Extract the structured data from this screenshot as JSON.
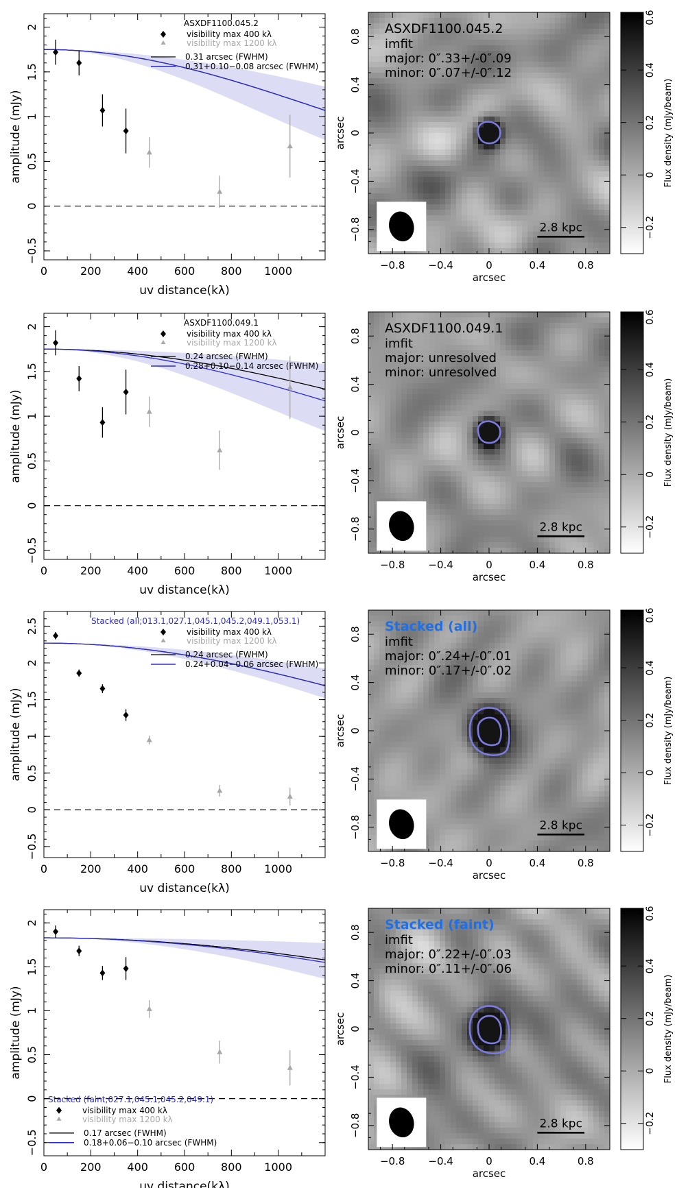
{
  "chart_data": [
    {
      "type": "scatter",
      "panel": "uv-amplitude",
      "title": "ASXDF1100.045.2",
      "xlabel": "uv distance(kλ)",
      "ylabel": "amplitude (mJy)",
      "xlim": [
        0,
        1200
      ],
      "ylim": [
        -0.6,
        2.15
      ],
      "xticks": [
        "0",
        "200",
        "400",
        "600",
        "800",
        "1000"
      ],
      "yticks": [
        "−0.5",
        "0",
        "0.5",
        "1",
        "1.5",
        "2"
      ],
      "legend": {
        "position": "top-right",
        "points_max": "visibility max  400 kλ",
        "points_grey": "visibility max 1200 kλ",
        "fit_black": "0.31 arcsec (FWHM)",
        "fit_blue": "0.31+0.10−0.08 arcsec (FWHM)"
      },
      "series": [
        {
          "name": "visibility max  400 kλ",
          "x": [
            50,
            150,
            250,
            350
          ],
          "y": [
            1.72,
            1.6,
            1.07,
            0.84
          ],
          "err": [
            0.14,
            0.14,
            0.18,
            0.25
          ]
        },
        {
          "name": "visibility max 1200 kλ",
          "x": [
            450,
            750,
            1050
          ],
          "y": [
            0.6,
            0.16,
            0.67
          ],
          "err": [
            0.17,
            0.18,
            0.35
          ]
        }
      ],
      "fits": {
        "amp0": 1.75,
        "fwhm_black": 0.31,
        "fwhm_blue": 0.31,
        "band_lo": 0.23,
        "band_hi": 0.41
      }
    },
    {
      "type": "heatmap",
      "panel": "image",
      "label": "ASXDF1100.045.2",
      "label_blue": false,
      "lines": [
        "imfit",
        "major: 0″.33+/-0″.09",
        "minor: 0″.07+/-0″.12"
      ],
      "xlabel": "arcsec",
      "ylabel": "arcsec",
      "xticks": [
        "−0.8",
        "−0.4",
        "0",
        "0.4",
        "0.8"
      ],
      "yticks": [
        "−0.8",
        "−0.4",
        "0",
        "0.4",
        "0.8"
      ],
      "scalebar": "2.8 kpc",
      "colorbar_label": "Flux density (mJy/beam)",
      "colorbar_ticks": [
        "−0.2",
        "0",
        "0.2",
        "0.4",
        "0.6"
      ],
      "contours": 1
    },
    {
      "type": "scatter",
      "panel": "uv-amplitude",
      "title": "ASXDF1100.049.1",
      "xlabel": "uv distance(kλ)",
      "ylabel": "amplitude (mJy)",
      "xlim": [
        0,
        1200
      ],
      "ylim": [
        -0.6,
        2.15
      ],
      "xticks": [
        "0",
        "200",
        "400",
        "600",
        "800",
        "1000"
      ],
      "yticks": [
        "−0.5",
        "0",
        "0.5",
        "1",
        "1.5",
        "2"
      ],
      "legend": {
        "position": "top-right",
        "points_max": "visibility max  400 kλ",
        "points_grey": "visibility max 1200 kλ",
        "fit_black": "0.24 arcsec (FWHM)",
        "fit_blue": "0.28+0.10−0.14 arcsec (FWHM)"
      },
      "series": [
        {
          "name": "visibility max  400 kλ",
          "x": [
            50,
            150,
            250,
            350
          ],
          "y": [
            1.82,
            1.42,
            0.93,
            1.27
          ],
          "err": [
            0.14,
            0.14,
            0.17,
            0.25
          ]
        },
        {
          "name": "visibility max 1200 kλ",
          "x": [
            450,
            750,
            1050
          ],
          "y": [
            1.05,
            0.62,
            1.32
          ],
          "err": [
            0.17,
            0.22,
            0.35
          ]
        }
      ],
      "fits": {
        "amp0": 1.75,
        "fwhm_black": 0.24,
        "fwhm_blue": 0.28,
        "band_lo": 0.14,
        "band_hi": 0.38
      }
    },
    {
      "type": "heatmap",
      "panel": "image",
      "label": "ASXDF1100.049.1",
      "label_blue": false,
      "lines": [
        "imfit",
        "major: unresolved",
        "minor: unresolved"
      ],
      "xlabel": "arcsec",
      "ylabel": "arcsec",
      "xticks": [
        "−0.8",
        "−0.4",
        "0",
        "0.4",
        "0.8"
      ],
      "yticks": [
        "−0.8",
        "−0.4",
        "0",
        "0.4",
        "0.8"
      ],
      "scalebar": "2.8 kpc",
      "colorbar_label": "Flux density (mJy/beam)",
      "colorbar_ticks": [
        "−0.2",
        "0",
        "0.2",
        "0.4",
        "0.6"
      ],
      "contours": 1
    },
    {
      "type": "scatter",
      "panel": "uv-amplitude",
      "title": "Stacked (all;013.1,027.1,045.1,045.2,049.1,053.1)",
      "title_blue": true,
      "xlabel": "uv distance(kλ)",
      "ylabel": "amplitude (mJy)",
      "xlim": [
        0,
        1200
      ],
      "ylim": [
        -0.65,
        2.7
      ],
      "xticks": [
        "0",
        "200",
        "400",
        "600",
        "800",
        "1000"
      ],
      "yticks": [
        "−0.5",
        "0",
        "0.5",
        "1",
        "1.5",
        "2",
        "2.5"
      ],
      "legend": {
        "position": "top-right",
        "points_max": "visibility max  400 kλ",
        "points_grey": "visibility max 1200 kλ",
        "fit_black": "0.24 arcsec (FWHM)",
        "fit_blue": "0.24+0.04−0.06 arcsec (FWHM)"
      },
      "series": [
        {
          "name": "visibility max  400 kλ",
          "x": [
            50,
            150,
            250,
            350
          ],
          "y": [
            2.37,
            1.86,
            1.65,
            1.29
          ],
          "err": [
            0.05,
            0.05,
            0.06,
            0.08
          ]
        },
        {
          "name": "visibility max 1200 kλ",
          "x": [
            450,
            750,
            1050
          ],
          "y": [
            0.95,
            0.26,
            0.18
          ],
          "err": [
            0.06,
            0.08,
            0.12
          ]
        }
      ],
      "fits": {
        "amp0": 2.27,
        "fwhm_black": 0.24,
        "fwhm_blue": 0.24,
        "band_lo": 0.18,
        "band_hi": 0.28
      }
    },
    {
      "type": "heatmap",
      "panel": "image",
      "label": "Stacked (all)",
      "label_blue": true,
      "lines": [
        "imfit",
        "major: 0″.24+/-0″.01",
        "minor: 0″.17+/-0″.02"
      ],
      "xlabel": "arcsec",
      "ylabel": "arcsec",
      "xticks": [
        "−0.8",
        "−0.4",
        "0",
        "0.4",
        "0.8"
      ],
      "yticks": [
        "−0.8",
        "−0.4",
        "0",
        "0.4",
        "0.8"
      ],
      "scalebar": "2.8 kpc",
      "colorbar_label": "Flux density (mJy/beam)",
      "colorbar_ticks": [
        "−0.2",
        "0",
        "0.2",
        "0.4",
        "0.6"
      ],
      "contours": 2
    },
    {
      "type": "scatter",
      "panel": "uv-amplitude",
      "title": "Stacked (faint;027.1,045.1,045.2,049.1)",
      "title_blue": true,
      "xlabel": "uv distance(kλ)",
      "ylabel": "amplitude (mJy)",
      "xlim": [
        0,
        1200
      ],
      "ylim": [
        -0.65,
        2.15
      ],
      "xticks": [
        "0",
        "200",
        "400",
        "600",
        "800",
        "1000"
      ],
      "yticks": [
        "−0.5",
        "0",
        "0.5",
        "1",
        "1.5",
        "2"
      ],
      "legend": {
        "position": "bottom-left",
        "points_max": "visibility max  400 kλ",
        "points_grey": "visibility max 1200 kλ",
        "fit_black": "0.17 arcsec (FWHM)",
        "fit_blue": "0.18+0.06−0.10 arcsec (FWHM)"
      },
      "series": [
        {
          "name": "visibility max  400 kλ",
          "x": [
            50,
            150,
            250,
            350
          ],
          "y": [
            1.9,
            1.68,
            1.43,
            1.48
          ],
          "err": [
            0.07,
            0.06,
            0.08,
            0.13
          ]
        },
        {
          "name": "visibility max 1200 kλ",
          "x": [
            450,
            750,
            1050
          ],
          "y": [
            1.02,
            0.53,
            0.35
          ],
          "err": [
            0.1,
            0.13,
            0.2
          ]
        }
      ],
      "fits": {
        "amp0": 1.83,
        "fwhm_black": 0.17,
        "fwhm_blue": 0.18,
        "band_lo": 0.08,
        "band_hi": 0.24
      }
    },
    {
      "type": "heatmap",
      "panel": "image",
      "label": "Stacked (faint)",
      "label_blue": true,
      "lines": [
        "imfit",
        "major: 0″.22+/-0″.03",
        "minor: 0″.11+/-0″.06"
      ],
      "xlabel": "arcsec",
      "ylabel": "arcsec",
      "xticks": [
        "−0.8",
        "−0.4",
        "0",
        "0.4",
        "0.8"
      ],
      "yticks": [
        "−0.8",
        "−0.4",
        "0",
        "0.4",
        "0.8"
      ],
      "scalebar": "2.8 kpc",
      "colorbar_label": "Flux density (mJy/beam)",
      "colorbar_ticks": [
        "−0.2",
        "0",
        "0.2",
        "0.4",
        "0.6"
      ],
      "contours": 2
    }
  ],
  "colors": {
    "blue_fit": "#2b2bd6",
    "band": "#dcdcf5",
    "grey_points": "#a8a8a8",
    "contour": "#7b7be0",
    "label_blue": "#1f6fe5"
  }
}
